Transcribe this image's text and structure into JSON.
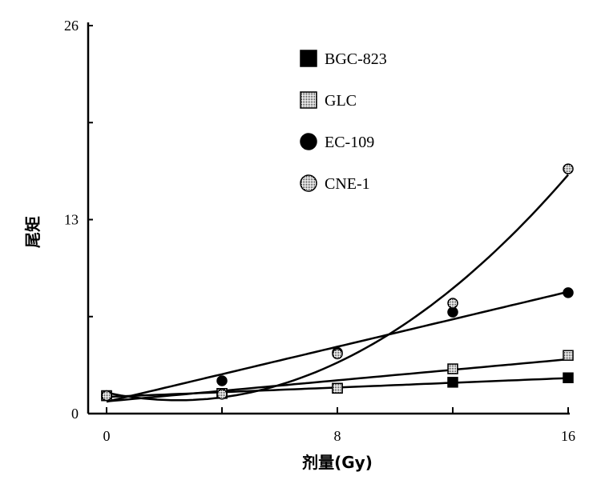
{
  "chart_data": {
    "type": "scatter",
    "title": "",
    "xlabel": "剂量(Gy)",
    "ylabel": "尾矩",
    "xlim": [
      0,
      16
    ],
    "ylim": [
      0,
      26
    ],
    "xticks": [
      "0",
      "8",
      "16"
    ],
    "yticks": [
      "0",
      "13",
      "26"
    ],
    "grid": false,
    "legend_position": "top-center",
    "x": [
      0,
      4,
      8,
      12,
      16
    ],
    "series": [
      {
        "name": "BGC-823",
        "marker": "filled-square",
        "fit": "linear",
        "values": [
          1.2,
          1.35,
          1.7,
          2.1,
          2.4
        ]
      },
      {
        "name": "GLC",
        "marker": "dotted-square",
        "fit": "linear",
        "values": [
          1.2,
          1.35,
          1.7,
          3.0,
          3.9
        ]
      },
      {
        "name": "EC-109",
        "marker": "filled-circle",
        "fit": "linear",
        "values": [
          1.2,
          2.2,
          4.1,
          6.8,
          8.1
        ]
      },
      {
        "name": "CNE-1",
        "marker": "dotted-circle",
        "fit": "quadratic",
        "values": [
          1.2,
          1.3,
          4.0,
          7.4,
          16.4
        ]
      }
    ],
    "colors": {
      "ink": "#000000",
      "dotted_fill": "#bdbdbd"
    }
  }
}
